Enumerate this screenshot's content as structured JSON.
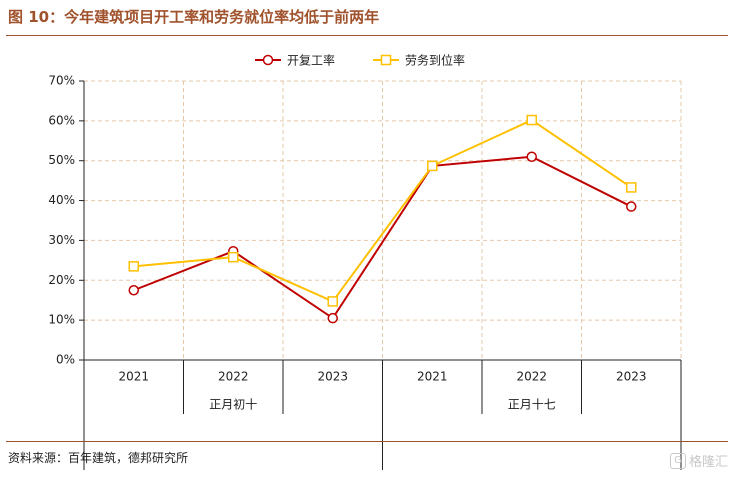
{
  "figure": {
    "title": "图 10：今年建筑项目开工率和劳务就位率均低于前两年",
    "source": "资料来源：百年建筑，德邦研究所",
    "watermark": "格隆汇",
    "watermark_logo": "G"
  },
  "colors": {
    "title": "#a0522d",
    "series_kaigong": "#c00000",
    "series_laowu": "#ffc000",
    "grid": "#e6c8aa",
    "axis": "#222222"
  },
  "chart_data": {
    "type": "line",
    "title": "",
    "xlabel": "",
    "ylabel": "",
    "ylim": [
      0,
      70
    ],
    "y_ticks": [
      "0%",
      "10%",
      "20%",
      "30%",
      "40%",
      "50%",
      "60%",
      "70%"
    ],
    "grid": true,
    "legend_position": "top-center",
    "categories": [
      "2021",
      "2022",
      "2023",
      "2021",
      "2022",
      "2023"
    ],
    "groups": [
      {
        "label": "正月初十",
        "categories": [
          "2021",
          "2022",
          "2023"
        ]
      },
      {
        "label": "正月十七",
        "categories": [
          "2021",
          "2022",
          "2023"
        ]
      }
    ],
    "series": [
      {
        "name": "开复工率",
        "marker": "circle",
        "values": [
          17.5,
          27.3,
          10.5,
          48.7,
          51.0,
          38.5
        ]
      },
      {
        "name": "劳务到位率",
        "marker": "square",
        "values": [
          23.5,
          25.8,
          14.7,
          48.7,
          60.2,
          43.3
        ]
      }
    ]
  }
}
